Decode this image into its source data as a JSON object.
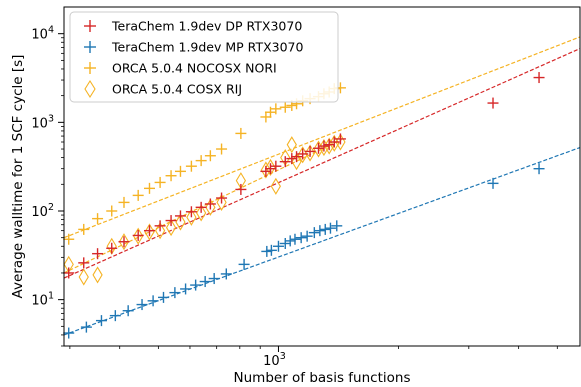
{
  "chart_data": {
    "type": "scatter",
    "title": "",
    "xlabel": "Number of basis functions",
    "ylabel": "Average walltime for 1 SCF cycle [s]",
    "xscale": "log",
    "yscale": "log",
    "xlim": [
      290,
      5700
    ],
    "ylim": [
      3,
      20000
    ],
    "grid": false,
    "legend_position": "top-left",
    "x_tick_labels": [
      {
        "value": 1000,
        "base": "10",
        "exp": "3"
      }
    ],
    "y_tick_labels": [
      {
        "value": 10,
        "base": "10",
        "exp": "1"
      },
      {
        "value": 100,
        "base": "10",
        "exp": "2"
      },
      {
        "value": 1000,
        "base": "10",
        "exp": "3"
      },
      {
        "value": 10000,
        "base": "10",
        "exp": "4"
      }
    ],
    "series": [
      {
        "name": "TeraChem 1.9dev DP RTX3070",
        "color": "#d62728",
        "marker": "plus",
        "fit": {
          "x": [
            290,
            5700
          ],
          "y": [
            17.5,
            6800
          ]
        },
        "points": [
          [
            298,
            20
          ],
          [
            325,
            26
          ],
          [
            352,
            33
          ],
          [
            382,
            38
          ],
          [
            410,
            45
          ],
          [
            445,
            53
          ],
          [
            475,
            60
          ],
          [
            505,
            68
          ],
          [
            538,
            78
          ],
          [
            568,
            88
          ],
          [
            605,
            98
          ],
          [
            640,
            110
          ],
          [
            675,
            120
          ],
          [
            720,
            140
          ],
          [
            805,
            175
          ],
          [
            930,
            280
          ],
          [
            955,
            300
          ],
          [
            985,
            320
          ],
          [
            1040,
            360
          ],
          [
            1080,
            390
          ],
          [
            1110,
            410
          ],
          [
            1150,
            440
          ],
          [
            1200,
            470
          ],
          [
            1260,
            510
          ],
          [
            1300,
            540
          ],
          [
            1340,
            560
          ],
          [
            1380,
            600
          ],
          [
            1430,
            650
          ],
          [
            3450,
            1650
          ],
          [
            4500,
            3200
          ]
        ]
      },
      {
        "name": "TeraChem 1.9dev MP RTX3070",
        "color": "#1f77b4",
        "marker": "plus",
        "fit": {
          "x": [
            290,
            5700
          ],
          "y": [
            4.0,
            520
          ]
        },
        "points": [
          [
            298,
            4.2
          ],
          [
            330,
            4.9
          ],
          [
            360,
            5.8
          ],
          [
            390,
            6.6
          ],
          [
            420,
            7.5
          ],
          [
            455,
            8.8
          ],
          [
            485,
            9.7
          ],
          [
            515,
            10.6
          ],
          [
            550,
            12.0
          ],
          [
            585,
            13.2
          ],
          [
            620,
            14.6
          ],
          [
            655,
            16.0
          ],
          [
            690,
            17.3
          ],
          [
            740,
            19.5
          ],
          [
            820,
            25
          ],
          [
            935,
            35
          ],
          [
            960,
            36
          ],
          [
            1000,
            40
          ],
          [
            1040,
            43
          ],
          [
            1070,
            46
          ],
          [
            1100,
            48
          ],
          [
            1140,
            50
          ],
          [
            1180,
            52
          ],
          [
            1230,
            57
          ],
          [
            1270,
            60
          ],
          [
            1310,
            62
          ],
          [
            1350,
            64
          ],
          [
            1400,
            68
          ],
          [
            3450,
            205
          ],
          [
            4500,
            300
          ]
        ]
      },
      {
        "name": "ORCA 5.0.4 NOCOSX NORI",
        "color": "#f5b324",
        "marker": "plus",
        "fit": {
          "x": [
            290,
            5700
          ],
          "y": [
            50,
            9200
          ]
        },
        "points": [
          [
            298,
            48
          ],
          [
            325,
            62
          ],
          [
            352,
            82
          ],
          [
            382,
            100
          ],
          [
            410,
            125
          ],
          [
            445,
            150
          ],
          [
            475,
            180
          ],
          [
            505,
            210
          ],
          [
            538,
            250
          ],
          [
            568,
            280
          ],
          [
            605,
            320
          ],
          [
            640,
            370
          ],
          [
            675,
            420
          ],
          [
            720,
            500
          ],
          [
            805,
            750
          ],
          [
            930,
            1150
          ],
          [
            955,
            1300
          ],
          [
            985,
            1420
          ],
          [
            1040,
            1480
          ],
          [
            1080,
            1550
          ],
          [
            1110,
            1620
          ],
          [
            1150,
            1750
          ],
          [
            1200,
            1850
          ],
          [
            1260,
            1950
          ],
          [
            1300,
            2100
          ],
          [
            1340,
            2200
          ],
          [
            1380,
            2400
          ],
          [
            1430,
            2450
          ]
        ]
      },
      {
        "name": "ORCA 5.0.4 COSX RIJ",
        "color": "#f5b324",
        "marker": "diamond",
        "fit": {
          "x": [
            290,
            1440
          ],
          "y": [
            20,
            640
          ]
        },
        "points": [
          [
            298,
            25
          ],
          [
            325,
            18
          ],
          [
            352,
            19
          ],
          [
            382,
            40
          ],
          [
            410,
            45
          ],
          [
            445,
            52
          ],
          [
            475,
            58
          ],
          [
            505,
            60
          ],
          [
            538,
            65
          ],
          [
            568,
            75
          ],
          [
            605,
            85
          ],
          [
            640,
            95
          ],
          [
            675,
            110
          ],
          [
            720,
            125
          ],
          [
            805,
            220
          ],
          [
            930,
            290
          ],
          [
            955,
            310
          ],
          [
            985,
            190
          ],
          [
            1040,
            400
          ],
          [
            1080,
            560
          ],
          [
            1110,
            360
          ],
          [
            1150,
            430
          ],
          [
            1200,
            450
          ],
          [
            1260,
            500
          ],
          [
            1300,
            520
          ],
          [
            1340,
            540
          ],
          [
            1380,
            580
          ],
          [
            1430,
            600
          ]
        ]
      }
    ]
  }
}
